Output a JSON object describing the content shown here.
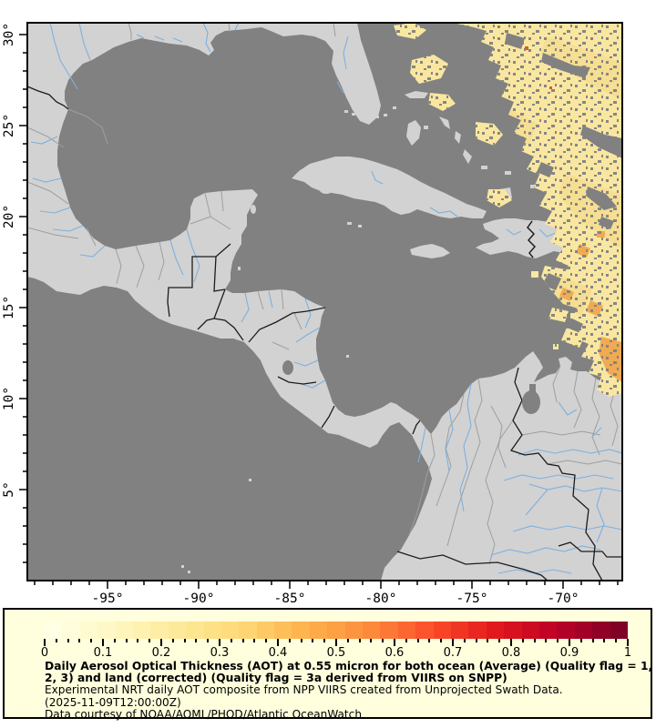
{
  "colors": {
    "page_bg": "#ffffff",
    "ocean": "#818181",
    "land": "#d2d2d2",
    "state_line": "#9e9e9e",
    "country_border": "#1c1c1c",
    "river": "#7fb0de",
    "lake": "#818181",
    "swath_base": "#f9e7a1",
    "swath_texture": "#f5d98a",
    "swath_orange": "#f0ab52",
    "swath_hot": "#e25b22",
    "legend_bg": "#ffffdd",
    "frame": "#000000",
    "tick": "#000000"
  },
  "map_axes": {
    "x_tick_labels": [
      "-95°",
      "-90°",
      "-85°",
      "-80°",
      "-75°",
      "-70°"
    ],
    "y_tick_labels": [
      "30°",
      "25°",
      "20°",
      "15°",
      "10°",
      "5°"
    ],
    "lon_minor_start": -99,
    "lon_minor_end": -67,
    "lat_minor_start": 1,
    "lat_minor_end": 30
  },
  "colorbar": {
    "min": 0,
    "max": 1,
    "minor_step": 0.02,
    "segments": 33,
    "tick_labels": [
      "0",
      "0.1",
      "0.2",
      "0.3",
      "0.4",
      "0.5",
      "0.6",
      "0.7",
      "0.8",
      "0.9",
      "1"
    ],
    "cmap_stops": [
      "#ffffe5",
      "#fff7c0",
      "#fee999",
      "#fed976",
      "#feb24c",
      "#fd8d3c",
      "#fc4e2a",
      "#e31a1c",
      "#bd0026",
      "#800026"
    ]
  },
  "legend": {
    "title_line1": "Daily Aerosol Optical Thickness (AOT) at 0.55 micron for both ocean (Average) (Quality flag = 1,",
    "title_line2": "2, 3) and land (corrected) (Quality flag = 3a derived from VIIRS on SNPP)",
    "subtitle": "Experimental NRT daily AOT composite from NPP VIIRS created from Unprojected Swath Data.",
    "timestamp": "(2025-11-09T12:00:00Z)",
    "courtesy": "Data courtesy of NOAA/AOML/PHOD/Atlantic OceanWatch"
  }
}
